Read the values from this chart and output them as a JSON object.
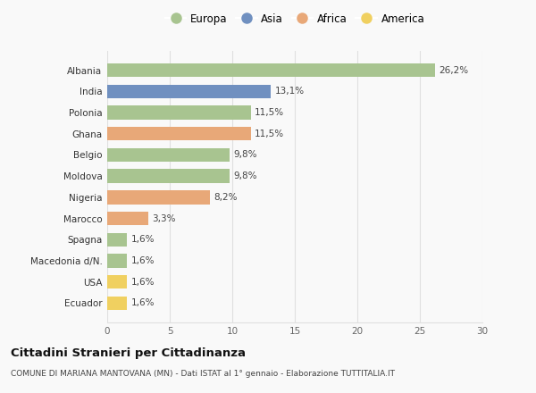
{
  "countries": [
    "Albania",
    "India",
    "Polonia",
    "Ghana",
    "Belgio",
    "Moldova",
    "Nigeria",
    "Marocco",
    "Spagna",
    "Macedonia d/N.",
    "USA",
    "Ecuador"
  ],
  "values": [
    26.2,
    13.1,
    11.5,
    11.5,
    9.8,
    9.8,
    8.2,
    3.3,
    1.6,
    1.6,
    1.6,
    1.6
  ],
  "labels": [
    "26,2%",
    "13,1%",
    "11,5%",
    "11,5%",
    "9,8%",
    "9,8%",
    "8,2%",
    "3,3%",
    "1,6%",
    "1,6%",
    "1,6%",
    "1,6%"
  ],
  "continents": [
    "Europa",
    "Asia",
    "Europa",
    "Africa",
    "Europa",
    "Europa",
    "Africa",
    "Africa",
    "Europa",
    "Europa",
    "America",
    "America"
  ],
  "colors": {
    "Europa": "#a8c490",
    "Asia": "#7090c0",
    "Africa": "#e8a878",
    "America": "#f0d060"
  },
  "legend_order": [
    "Europa",
    "Asia",
    "Africa",
    "America"
  ],
  "xlim": [
    0,
    30
  ],
  "xticks": [
    0,
    5,
    10,
    15,
    20,
    25,
    30
  ],
  "title": "Cittadini Stranieri per Cittadinanza",
  "subtitle": "COMUNE DI MARIANA MANTOVANA (MN) - Dati ISTAT al 1° gennaio - Elaborazione TUTTITALIA.IT",
  "background_color": "#f9f9f9",
  "grid_color": "#e0e0e0",
  "label_fontsize": 7.5,
  "ytick_fontsize": 7.5,
  "xtick_fontsize": 7.5
}
